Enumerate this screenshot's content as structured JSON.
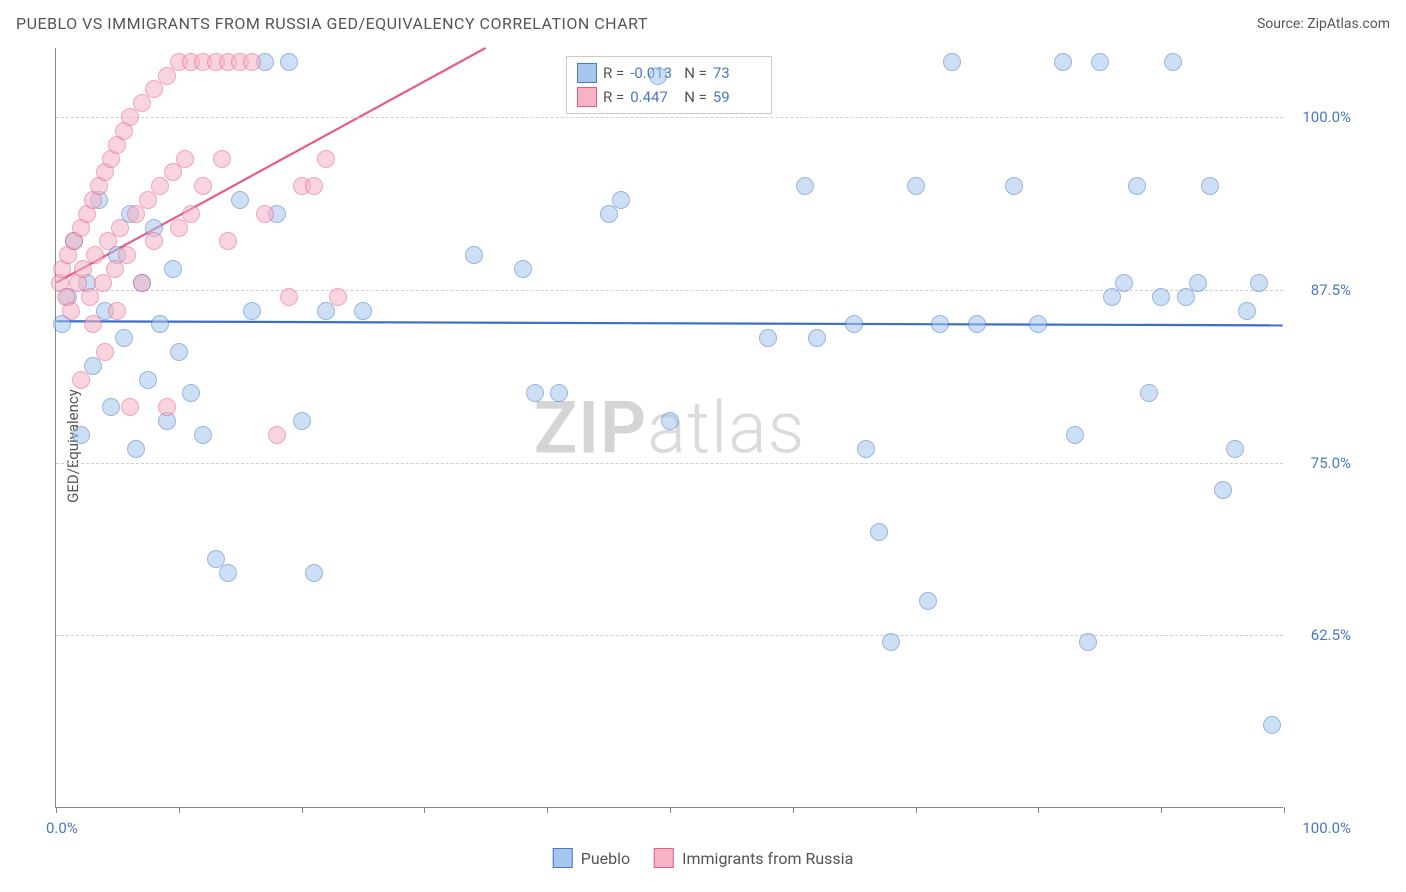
{
  "title": "PUEBLO VS IMMIGRANTS FROM RUSSIA GED/EQUIVALENCY CORRELATION CHART",
  "source_label": "Source: ",
  "source_name": "ZipAtlas.com",
  "watermark_bold": "ZIP",
  "watermark_light": "atlas",
  "chart": {
    "type": "scatter",
    "ylabel": "GED/Equivalency",
    "xlim": [
      0,
      100
    ],
    "ylim": [
      50,
      105
    ],
    "x_tick_positions": [
      0,
      10,
      20,
      30,
      40,
      50,
      60,
      70,
      80,
      90,
      100
    ],
    "x_tick_labels_shown": {
      "0": "0.0%",
      "100": "100.0%"
    },
    "y_gridlines": [
      62.5,
      75,
      87.5,
      100
    ],
    "y_tick_labels": {
      "62.5": "62.5%",
      "75": "75.0%",
      "87.5": "87.5%",
      "100": "100.0%"
    },
    "background_color": "#ffffff",
    "grid_color": "#d0d0d0",
    "axis_color": "#888888",
    "tick_label_color": "#4a78c4",
    "axis_title_color": "#555555",
    "marker_radius": 9,
    "marker_opacity": 0.55,
    "trend_line_width": 2.2,
    "label_fontsize": 15,
    "title_fontsize": 16
  },
  "series": [
    {
      "name": "Pueblo",
      "fill_color": "#a6c6ed",
      "stroke_color": "#4a78c4",
      "trend_color": "#3b6fc9",
      "R": "-0.013",
      "N": "73",
      "trend": {
        "x1": 0,
        "y1": 85.2,
        "x2": 100,
        "y2": 84.9
      },
      "points": [
        [
          0.5,
          85
        ],
        [
          1,
          87
        ],
        [
          1.5,
          91
        ],
        [
          2,
          77
        ],
        [
          2.5,
          88
        ],
        [
          3,
          82
        ],
        [
          3.5,
          94
        ],
        [
          4,
          86
        ],
        [
          4.5,
          79
        ],
        [
          5,
          90
        ],
        [
          5.5,
          84
        ],
        [
          6,
          93
        ],
        [
          6.5,
          76
        ],
        [
          7,
          88
        ],
        [
          7.5,
          81
        ],
        [
          8,
          92
        ],
        [
          8.5,
          85
        ],
        [
          9,
          78
        ],
        [
          9.5,
          89
        ],
        [
          10,
          83
        ],
        [
          11,
          80
        ],
        [
          12,
          77
        ],
        [
          13,
          68
        ],
        [
          14,
          67
        ],
        [
          15,
          94
        ],
        [
          16,
          86
        ],
        [
          17,
          104
        ],
        [
          18,
          93
        ],
        [
          19,
          104
        ],
        [
          20,
          78
        ],
        [
          21,
          67
        ],
        [
          22,
          86
        ],
        [
          25,
          86
        ],
        [
          34,
          90
        ],
        [
          38,
          89
        ],
        [
          39,
          80
        ],
        [
          41,
          80
        ],
        [
          45,
          93
        ],
        [
          46,
          94
        ],
        [
          49,
          103
        ],
        [
          50,
          78
        ],
        [
          58,
          84
        ],
        [
          61,
          95
        ],
        [
          62,
          84
        ],
        [
          65,
          85
        ],
        [
          66,
          76
        ],
        [
          67,
          70
        ],
        [
          68,
          62
        ],
        [
          70,
          95
        ],
        [
          71,
          65
        ],
        [
          72,
          85
        ],
        [
          73,
          104
        ],
        [
          75,
          85
        ],
        [
          78,
          95
        ],
        [
          80,
          85
        ],
        [
          82,
          104
        ],
        [
          83,
          77
        ],
        [
          84,
          62
        ],
        [
          85,
          104
        ],
        [
          86,
          87
        ],
        [
          87,
          88
        ],
        [
          88,
          95
        ],
        [
          89,
          80
        ],
        [
          90,
          87
        ],
        [
          91,
          104
        ],
        [
          92,
          87
        ],
        [
          93,
          88
        ],
        [
          94,
          95
        ],
        [
          95,
          73
        ],
        [
          96,
          76
        ],
        [
          97,
          86
        ],
        [
          98,
          88
        ],
        [
          99,
          56
        ]
      ]
    },
    {
      "name": "Immigrants from Russia",
      "fill_color": "#f4b4c4",
      "stroke_color": "#e85a8a",
      "trend_color": "#e85a8a",
      "R": "0.447",
      "N": "59",
      "trend": {
        "x1": 0,
        "y1": 88,
        "x2": 35,
        "y2": 105
      },
      "points": [
        [
          0.3,
          88
        ],
        [
          0.5,
          89
        ],
        [
          0.8,
          87
        ],
        [
          1,
          90
        ],
        [
          1.2,
          86
        ],
        [
          1.5,
          91
        ],
        [
          1.8,
          88
        ],
        [
          2,
          92
        ],
        [
          2,
          81
        ],
        [
          2.2,
          89
        ],
        [
          2.5,
          93
        ],
        [
          2.8,
          87
        ],
        [
          3,
          94
        ],
        [
          3,
          85
        ],
        [
          3.2,
          90
        ],
        [
          3.5,
          95
        ],
        [
          3.8,
          88
        ],
        [
          4,
          96
        ],
        [
          4,
          83
        ],
        [
          4.2,
          91
        ],
        [
          4.5,
          97
        ],
        [
          4.8,
          89
        ],
        [
          5,
          98
        ],
        [
          5,
          86
        ],
        [
          5.2,
          92
        ],
        [
          5.5,
          99
        ],
        [
          5.8,
          90
        ],
        [
          6,
          100
        ],
        [
          6,
          79
        ],
        [
          6.5,
          93
        ],
        [
          7,
          101
        ],
        [
          7,
          88
        ],
        [
          7.5,
          94
        ],
        [
          8,
          102
        ],
        [
          8,
          91
        ],
        [
          8.5,
          95
        ],
        [
          9,
          103
        ],
        [
          9,
          79
        ],
        [
          9.5,
          96
        ],
        [
          10,
          104
        ],
        [
          10,
          92
        ],
        [
          10.5,
          97
        ],
        [
          11,
          104
        ],
        [
          11,
          93
        ],
        [
          12,
          104
        ],
        [
          12,
          95
        ],
        [
          13,
          104
        ],
        [
          13.5,
          97
        ],
        [
          14,
          104
        ],
        [
          14,
          91
        ],
        [
          15,
          104
        ],
        [
          16,
          104
        ],
        [
          17,
          93
        ],
        [
          18,
          77
        ],
        [
          19,
          87
        ],
        [
          20,
          95
        ],
        [
          21,
          95
        ],
        [
          22,
          97
        ],
        [
          23,
          87
        ]
      ]
    }
  ],
  "stats_box": {
    "r_label": "R =",
    "n_label": "N ="
  },
  "legend": {
    "items": [
      "Pueblo",
      "Immigrants from Russia"
    ]
  }
}
